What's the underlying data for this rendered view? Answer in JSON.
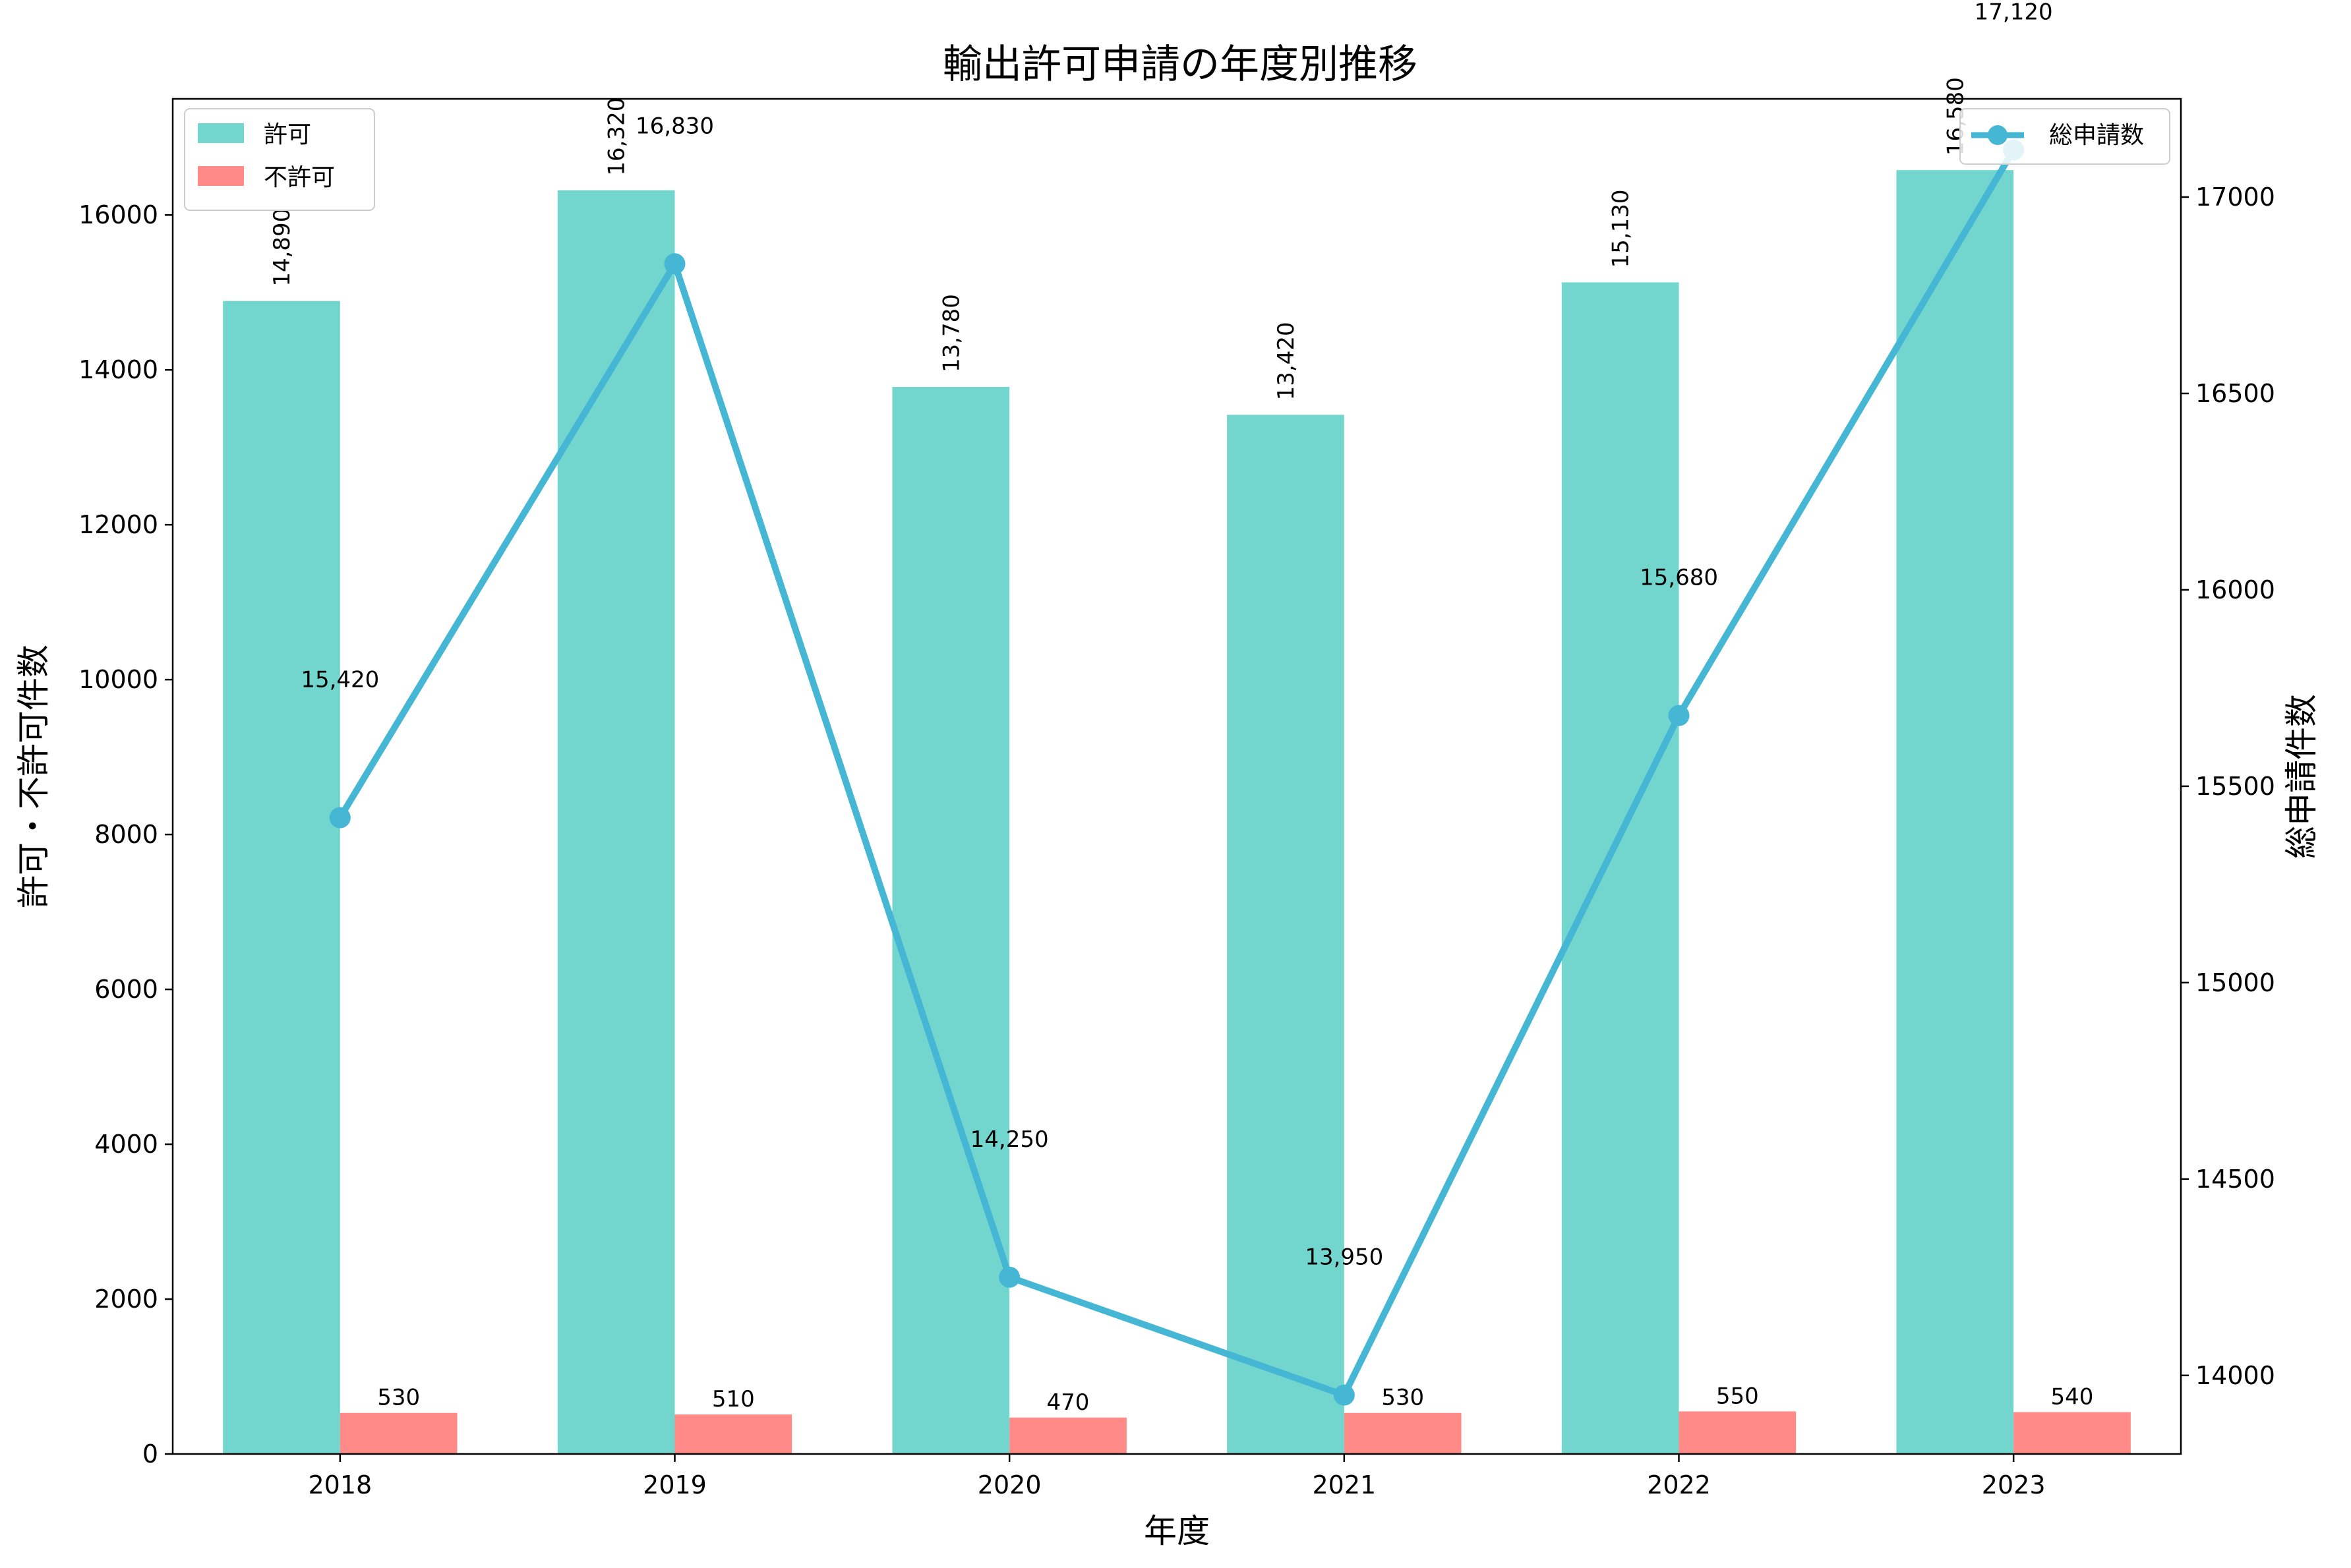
{
  "chart_data": {
    "type": "bar",
    "title": "輸出許可申請の年度別推移",
    "xlabel": "年度",
    "ylabel": "許可・不許可件数",
    "y2label": "総申請件数",
    "categories": [
      "2018",
      "2019",
      "2020",
      "2021",
      "2022",
      "2023"
    ],
    "ylim": [
      0,
      17500
    ],
    "y2lim": [
      13800,
      17250
    ],
    "yticks": [
      "0",
      "2000",
      "4000",
      "6000",
      "8000",
      "10000",
      "12000",
      "14000",
      "16000"
    ],
    "y2ticks": [
      "14000",
      "14500",
      "15000",
      "15500",
      "16000",
      "16500",
      "17000"
    ],
    "grid": false,
    "series": [
      {
        "name": "許可",
        "type": "bar",
        "axis": "left",
        "color": "#73D6CE",
        "values": [
          14890,
          16320,
          13780,
          13420,
          15130,
          16580
        ],
        "labels": [
          "14,890",
          "16,320",
          "13,780",
          "13,420",
          "15,130",
          "16,580"
        ]
      },
      {
        "name": "不許可",
        "type": "bar",
        "axis": "left",
        "color": "#FF8A87",
        "values": [
          530,
          510,
          470,
          530,
          550,
          540
        ],
        "labels": [
          "530",
          "510",
          "470",
          "530",
          "550",
          "540"
        ]
      },
      {
        "name": "総申請数",
        "type": "line",
        "axis": "right",
        "color": "#45B6D3",
        "values": [
          15420,
          16830,
          14250,
          13950,
          15680,
          17120
        ],
        "labels": [
          "15,420",
          "16,830",
          "14,250",
          "13,950",
          "15,680",
          "17,120"
        ]
      }
    ],
    "legend": {
      "left_position": "top-left",
      "right_position": "top-right"
    }
  }
}
